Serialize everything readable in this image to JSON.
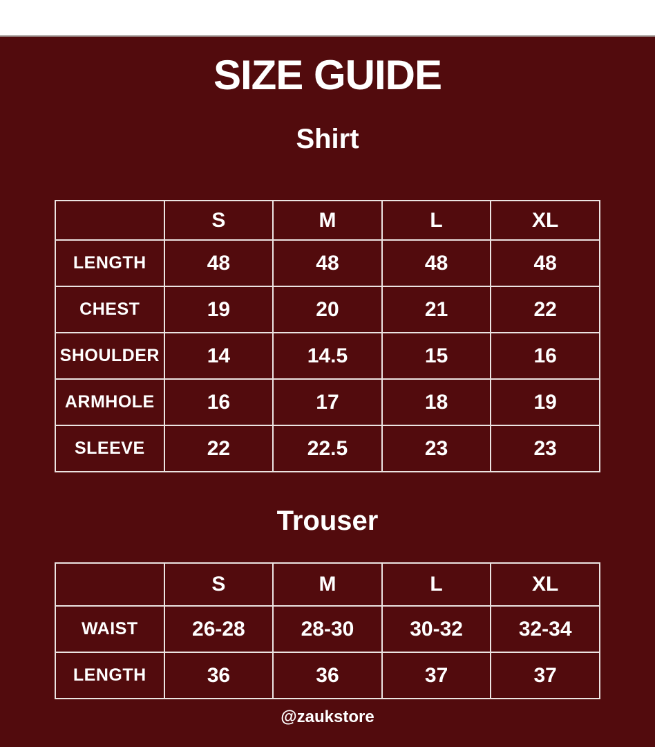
{
  "page": {
    "title": "SIZE GUIDE",
    "footer": "@zaukstore",
    "colors": {
      "background": "#520b0d",
      "text": "#ffffff",
      "table_border": "#ece4e2",
      "top_bar": "#ffffff",
      "top_bar_divider": "#a6a19d"
    }
  },
  "sections": [
    {
      "heading": "Shirt",
      "columns": [
        "",
        "S",
        "M",
        "L",
        "XL"
      ],
      "rows": [
        {
          "label": "LENGTH",
          "values": [
            "48",
            "48",
            "48",
            "48"
          ]
        },
        {
          "label": "CHEST",
          "values": [
            "19",
            "20",
            "21",
            "22"
          ]
        },
        {
          "label": "SHOULDER",
          "values": [
            "14",
            "14.5",
            "15",
            "16"
          ]
        },
        {
          "label": "ARMHOLE",
          "values": [
            "16",
            "17",
            "18",
            "19"
          ]
        },
        {
          "label": "SLEEVE",
          "values": [
            "22",
            "22.5",
            "23",
            "23"
          ]
        }
      ]
    },
    {
      "heading": "Trouser",
      "columns": [
        "",
        "S",
        "M",
        "L",
        "XL"
      ],
      "rows": [
        {
          "label": "WAIST",
          "values": [
            "26-28",
            "28-30",
            "30-32",
            "32-34"
          ]
        },
        {
          "label": "LENGTH",
          "values": [
            "36",
            "36",
            "37",
            "37"
          ]
        }
      ]
    }
  ]
}
